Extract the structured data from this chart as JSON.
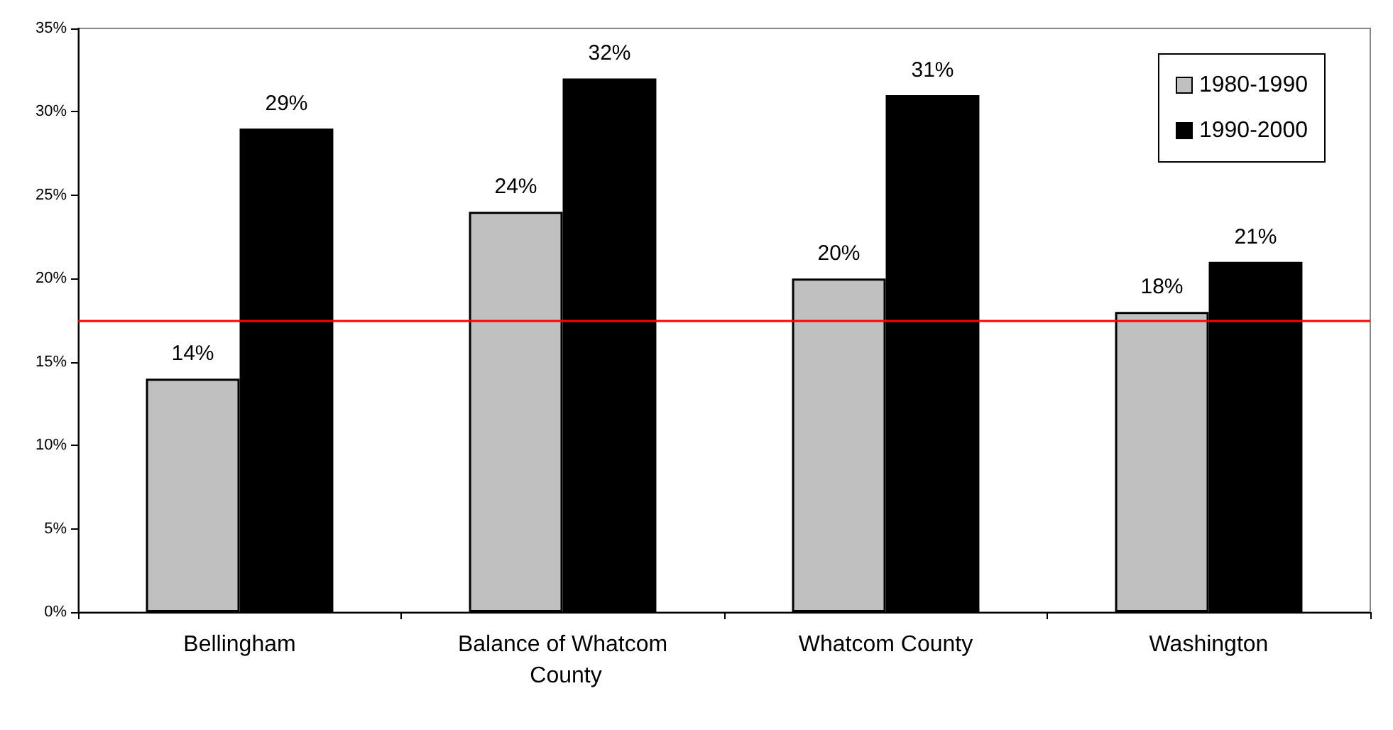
{
  "chart_data": {
    "type": "bar",
    "categories": [
      "Bellingham",
      "Balance of Whatcom County",
      "Whatcom County",
      "Washington"
    ],
    "series": [
      {
        "name": "1980-1990",
        "color": "#c0c0c0",
        "values": [
          14,
          24,
          20,
          18
        ],
        "value_labels": [
          "14%",
          "24%",
          "20%",
          "18%"
        ]
      },
      {
        "name": "1990-2000",
        "color": "#000000",
        "values": [
          29,
          32,
          31,
          21
        ],
        "value_labels": [
          "29%",
          "32%",
          "31%",
          "21%"
        ]
      }
    ],
    "ylim": [
      0,
      35
    ],
    "yticks": [
      {
        "value": 0,
        "label": "0%"
      },
      {
        "value": 5,
        "label": "5%"
      },
      {
        "value": 10,
        "label": "10%"
      },
      {
        "value": 15,
        "label": "15%"
      },
      {
        "value": 20,
        "label": "20%"
      },
      {
        "value": 25,
        "label": "25%"
      },
      {
        "value": 30,
        "label": "30%"
      },
      {
        "value": 35,
        "label": "35%"
      }
    ],
    "ref_lines": [
      {
        "axis": "y",
        "value": 17.5,
        "color": "#ff0000",
        "line_style": "solid"
      }
    ],
    "grid": false,
    "legend": "top right"
  }
}
